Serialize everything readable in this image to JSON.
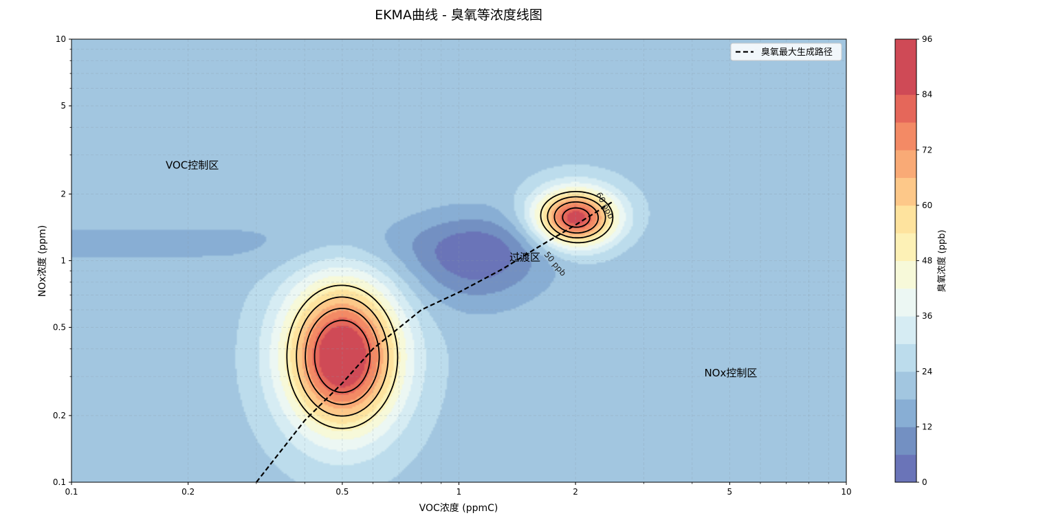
{
  "chart_data": {
    "type": "contour",
    "title": "EKMA曲线 - 臭氧等浓度线图",
    "xlabel": "VOC浓度 (ppmC)",
    "ylabel": "NOx浓度 (ppm)",
    "x_scale": "log",
    "y_scale": "log",
    "xlim": [
      0.1,
      10
    ],
    "ylim": [
      0.1,
      10
    ],
    "xticks": [
      "0.1",
      "0.2",
      "0.5",
      "1",
      "2",
      "5",
      "10"
    ],
    "yticks": [
      "0.1",
      "0.2",
      "0.5",
      "1",
      "2",
      "5",
      "10"
    ],
    "grid": true,
    "colormap": "RdYlBu_r",
    "colorbar": {
      "label": "臭氧浓度 (ppb)",
      "min": 0,
      "max": 96,
      "step": 6,
      "ticks": [
        "0",
        "12",
        "24",
        "36",
        "48",
        "60",
        "72",
        "84",
        "96"
      ],
      "colors": [
        "#6a74b8",
        "#7390c2",
        "#88aed4",
        "#a2c6e0",
        "#bcdcec",
        "#d6ecf3",
        "#ecf7f3",
        "#f7f9d9",
        "#fdf1b6",
        "#fee39e",
        "#fdc889",
        "#f9aa76",
        "#f38a65",
        "#e5675a",
        "#cf4a56"
      ]
    },
    "peaks": [
      {
        "voc": 0.5,
        "nox": 0.37,
        "ozone": 96
      },
      {
        "voc": 2.0,
        "nox": 1.55,
        "ozone": 90
      }
    ],
    "trough": {
      "voc": 1.1,
      "nox": 1.0,
      "ozone": 2
    },
    "contour_lines_ppb": [
      50,
      60,
      70,
      80
    ],
    "contour_labels": [
      "60 ppb",
      "50 ppb"
    ],
    "series": [
      {
        "name": "臭氧最大生成路径",
        "x": [
          0.3,
          0.4,
          0.5,
          0.6,
          0.8,
          1.0,
          1.3,
          1.6,
          2.0,
          2.5
        ],
        "y": [
          0.1,
          0.19,
          0.28,
          0.4,
          0.6,
          0.72,
          0.92,
          1.15,
          1.45,
          1.85
        ]
      }
    ],
    "annotations": [
      {
        "text": "VOC控制区",
        "voc": 0.175,
        "nox": 2.6
      },
      {
        "text": "过渡区",
        "voc": 1.35,
        "nox": 1.0
      },
      {
        "text": "NOx控制区",
        "voc": 4.3,
        "nox": 0.3
      }
    ],
    "legend": {
      "position": "top-right",
      "entries": [
        "臭氧最大生成路径"
      ]
    }
  }
}
